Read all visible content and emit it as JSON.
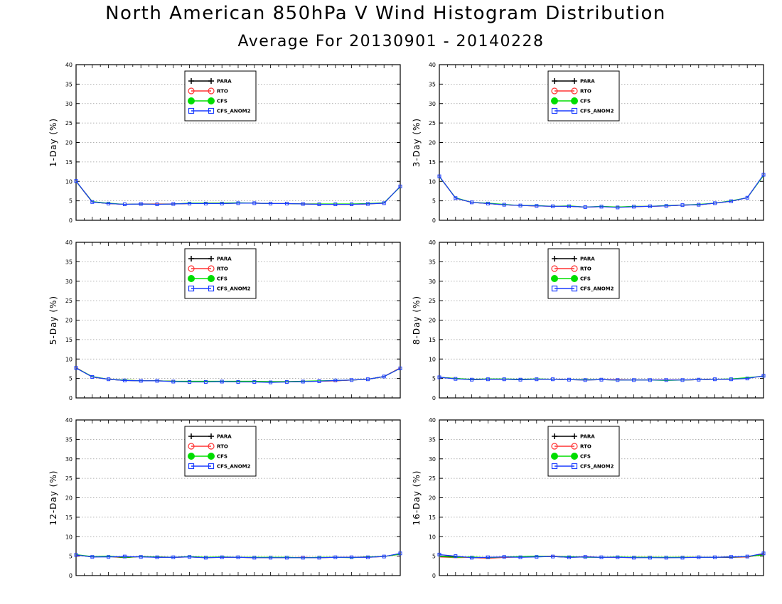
{
  "title": "North American 850hPa V Wind Histogram Distribution",
  "subtitle": "Average For 20130901 - 20140228",
  "colors": {
    "PARA": "#000000",
    "RTO": "#ff3333",
    "CFS": "#00dd00",
    "CFS_ANOM2": "#1a3cff"
  },
  "chart_data": [
    {
      "type": "line",
      "ylabel": "1-Day (%)",
      "ylim": [
        0,
        40
      ],
      "yticks": [
        0,
        5,
        10,
        15,
        20,
        25,
        30,
        35,
        40
      ],
      "grid": true,
      "legend": "top-center",
      "series": [
        {
          "name": "PARA",
          "values": [
            10.0,
            4.7,
            4.3,
            4.1,
            4.2,
            4.1,
            4.2,
            4.3,
            4.3,
            4.3,
            4.4,
            4.4,
            4.3,
            4.3,
            4.2,
            4.1,
            4.1,
            4.1,
            4.3,
            4.4,
            8.7
          ]
        },
        {
          "name": "RTO",
          "values": [
            10.0,
            4.8,
            4.3,
            4.1,
            4.2,
            4.2,
            4.2,
            4.3,
            4.4,
            4.4,
            4.4,
            4.4,
            4.3,
            4.3,
            4.2,
            4.2,
            4.1,
            4.1,
            4.2,
            4.4,
            8.7
          ]
        },
        {
          "name": "CFS",
          "values": [
            10.0,
            4.8,
            4.4,
            4.1,
            4.2,
            4.1,
            4.2,
            4.4,
            4.4,
            4.4,
            4.5,
            4.4,
            4.3,
            4.3,
            4.2,
            4.2,
            4.2,
            4.2,
            4.3,
            4.5,
            8.6
          ]
        },
        {
          "name": "CFS_ANOM2",
          "values": [
            10.1,
            4.7,
            4.3,
            4.1,
            4.2,
            4.1,
            4.2,
            4.3,
            4.3,
            4.3,
            4.4,
            4.4,
            4.3,
            4.3,
            4.2,
            4.1,
            4.1,
            4.1,
            4.2,
            4.4,
            8.7
          ]
        }
      ]
    },
    {
      "type": "line",
      "ylabel": "3-Day (%)",
      "ylim": [
        0,
        40
      ],
      "yticks": [
        0,
        5,
        10,
        15,
        20,
        25,
        30,
        35,
        40
      ],
      "grid": true,
      "legend": "top-center",
      "series": [
        {
          "name": "PARA",
          "values": [
            11.3,
            5.7,
            4.6,
            4.3,
            4.0,
            3.8,
            3.7,
            3.6,
            3.6,
            3.4,
            3.5,
            3.4,
            3.5,
            3.6,
            3.7,
            3.9,
            4.0,
            4.4,
            4.9,
            5.8,
            11.6
          ]
        },
        {
          "name": "RTO",
          "values": [
            11.3,
            5.7,
            4.6,
            4.3,
            4.0,
            3.8,
            3.7,
            3.6,
            3.6,
            3.4,
            3.5,
            3.4,
            3.5,
            3.6,
            3.7,
            3.9,
            4.0,
            4.4,
            4.9,
            5.8,
            11.6
          ]
        },
        {
          "name": "CFS",
          "values": [
            11.2,
            5.8,
            4.6,
            4.4,
            4.1,
            3.8,
            3.8,
            3.6,
            3.7,
            3.4,
            3.6,
            3.4,
            3.6,
            3.6,
            3.8,
            3.9,
            4.1,
            4.4,
            5.0,
            5.8,
            11.5
          ]
        },
        {
          "name": "CFS_ANOM2",
          "values": [
            11.3,
            5.7,
            4.6,
            4.3,
            4.0,
            3.8,
            3.7,
            3.6,
            3.6,
            3.4,
            3.5,
            3.3,
            3.5,
            3.6,
            3.7,
            3.9,
            4.0,
            4.4,
            4.9,
            5.8,
            11.7
          ]
        }
      ]
    },
    {
      "type": "line",
      "ylabel": "5-Day (%)",
      "ylim": [
        0,
        40
      ],
      "yticks": [
        0,
        5,
        10,
        15,
        20,
        25,
        30,
        35,
        40
      ],
      "grid": true,
      "legend": "top-center",
      "series": [
        {
          "name": "PARA",
          "values": [
            7.7,
            5.4,
            4.8,
            4.5,
            4.4,
            4.4,
            4.3,
            4.2,
            4.2,
            4.2,
            4.2,
            4.2,
            4.1,
            4.1,
            4.2,
            4.3,
            4.4,
            4.6,
            4.8,
            5.5,
            7.7
          ]
        },
        {
          "name": "RTO",
          "values": [
            7.8,
            5.4,
            4.8,
            4.6,
            4.4,
            4.4,
            4.3,
            4.2,
            4.3,
            4.2,
            4.3,
            4.2,
            4.2,
            4.2,
            4.3,
            4.3,
            4.4,
            4.6,
            4.8,
            5.5,
            7.7
          ]
        },
        {
          "name": "CFS",
          "values": [
            7.7,
            5.5,
            4.8,
            4.6,
            4.4,
            4.4,
            4.3,
            4.3,
            4.3,
            4.3,
            4.3,
            4.3,
            4.2,
            4.2,
            4.3,
            4.4,
            4.5,
            4.6,
            4.8,
            5.5,
            7.6
          ]
        },
        {
          "name": "CFS_ANOM2",
          "values": [
            7.7,
            5.4,
            4.8,
            4.5,
            4.4,
            4.4,
            4.2,
            4.1,
            4.1,
            4.2,
            4.1,
            4.1,
            4.0,
            4.1,
            4.2,
            4.3,
            4.5,
            4.6,
            4.8,
            5.5,
            7.6
          ]
        }
      ]
    },
    {
      "type": "line",
      "ylabel": "8-Day (%)",
      "ylim": [
        0,
        40
      ],
      "yticks": [
        0,
        5,
        10,
        15,
        20,
        25,
        30,
        35,
        40
      ],
      "grid": true,
      "legend": "top-center",
      "series": [
        {
          "name": "PARA",
          "values": [
            5.3,
            5.0,
            4.7,
            4.8,
            4.8,
            4.7,
            4.8,
            4.8,
            4.7,
            4.6,
            4.7,
            4.6,
            4.6,
            4.6,
            4.6,
            4.6,
            4.7,
            4.8,
            4.8,
            5.1,
            5.6
          ]
        },
        {
          "name": "RTO",
          "values": [
            5.3,
            5.0,
            4.7,
            4.8,
            4.8,
            4.8,
            4.8,
            4.8,
            4.7,
            4.7,
            4.7,
            4.7,
            4.6,
            4.6,
            4.6,
            4.6,
            4.7,
            4.8,
            4.8,
            5.1,
            5.6
          ]
        },
        {
          "name": "CFS",
          "values": [
            5.3,
            5.0,
            4.8,
            4.9,
            4.9,
            4.8,
            4.9,
            4.8,
            4.7,
            4.7,
            4.7,
            4.6,
            4.6,
            4.6,
            4.5,
            4.6,
            4.7,
            4.8,
            4.9,
            5.2,
            5.6
          ]
        },
        {
          "name": "CFS_ANOM2",
          "values": [
            5.3,
            4.9,
            4.7,
            4.8,
            4.8,
            4.7,
            4.8,
            4.8,
            4.7,
            4.6,
            4.7,
            4.6,
            4.6,
            4.6,
            4.6,
            4.6,
            4.7,
            4.8,
            4.8,
            5.0,
            5.7
          ]
        }
      ]
    },
    {
      "type": "line",
      "ylabel": "12-Day (%)",
      "ylim": [
        0,
        40
      ],
      "yticks": [
        0,
        5,
        10,
        15,
        20,
        25,
        30,
        35,
        40
      ],
      "grid": true,
      "legend": "top-center",
      "series": [
        {
          "name": "PARA",
          "values": [
            5.3,
            4.8,
            4.9,
            4.6,
            4.9,
            4.7,
            4.7,
            4.8,
            4.6,
            4.7,
            4.7,
            4.6,
            4.6,
            4.6,
            4.6,
            4.6,
            4.7,
            4.7,
            4.8,
            4.9,
            5.6
          ]
        },
        {
          "name": "RTO",
          "values": [
            5.2,
            4.9,
            4.9,
            4.7,
            4.9,
            4.8,
            4.7,
            4.8,
            4.7,
            4.7,
            4.7,
            4.6,
            4.6,
            4.6,
            4.7,
            4.6,
            4.7,
            4.7,
            4.7,
            4.9,
            5.5
          ]
        },
        {
          "name": "CFS",
          "values": [
            5.4,
            4.9,
            5.0,
            4.7,
            4.9,
            4.8,
            4.7,
            4.9,
            4.7,
            4.8,
            4.7,
            4.7,
            4.7,
            4.7,
            4.6,
            4.7,
            4.7,
            4.6,
            4.8,
            4.9,
            5.5
          ]
        },
        {
          "name": "CFS_ANOM2",
          "values": [
            5.3,
            4.8,
            4.8,
            4.9,
            4.8,
            4.7,
            4.7,
            4.8,
            4.6,
            4.7,
            4.7,
            4.6,
            4.6,
            4.6,
            4.6,
            4.6,
            4.7,
            4.7,
            4.7,
            4.9,
            5.7
          ]
        }
      ]
    },
    {
      "type": "line",
      "ylabel": "16-Day (%)",
      "ylim": [
        0,
        40
      ],
      "yticks": [
        0,
        5,
        10,
        15,
        20,
        25,
        30,
        35,
        40
      ],
      "grid": true,
      "legend": "top-center",
      "series": [
        {
          "name": "PARA",
          "values": [
            5.0,
            4.9,
            4.6,
            4.5,
            4.7,
            4.8,
            4.9,
            4.9,
            4.7,
            4.8,
            4.7,
            4.7,
            4.7,
            4.7,
            4.6,
            4.7,
            4.7,
            4.7,
            4.7,
            4.8,
            5.5
          ]
        },
        {
          "name": "RTO",
          "values": [
            4.8,
            4.6,
            4.7,
            4.4,
            4.7,
            4.8,
            4.9,
            5.0,
            4.8,
            4.8,
            4.7,
            4.7,
            4.6,
            4.7,
            4.6,
            4.7,
            4.7,
            4.7,
            4.8,
            4.8,
            5.4
          ]
        },
        {
          "name": "CFS",
          "values": [
            4.9,
            4.7,
            4.8,
            4.6,
            4.8,
            4.9,
            5.0,
            4.9,
            4.9,
            4.7,
            4.7,
            4.8,
            4.7,
            4.7,
            4.7,
            4.7,
            4.7,
            4.7,
            4.8,
            4.9,
            5.3
          ]
        },
        {
          "name": "CFS_ANOM2",
          "values": [
            5.4,
            5.0,
            4.6,
            4.7,
            4.8,
            4.7,
            4.8,
            4.9,
            4.7,
            4.8,
            4.7,
            4.7,
            4.6,
            4.6,
            4.6,
            4.6,
            4.7,
            4.7,
            4.8,
            4.9,
            5.7
          ]
        }
      ]
    }
  ]
}
